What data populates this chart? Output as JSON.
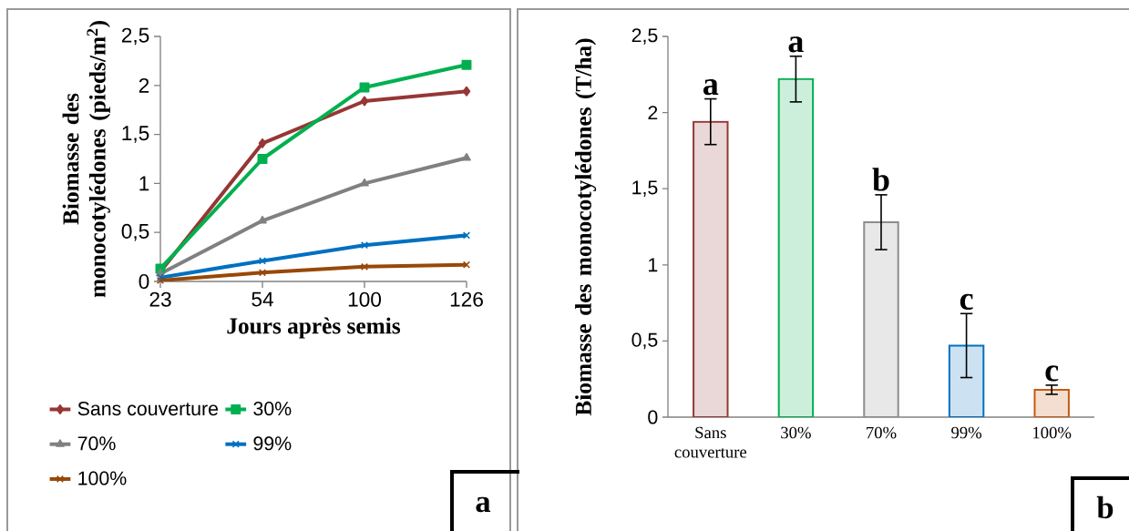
{
  "chart_data": [
    {
      "type": "line",
      "xlabel": "Jours après semis",
      "ylabel": "Biomasse des monocotylédones (pieds/m$^{2}$)",
      "categories": [
        "23",
        "54",
        "100",
        "126"
      ],
      "series": [
        {
          "name": "Sans couverture",
          "color": "#953735",
          "marker": "diamond",
          "values": [
            0.1,
            1.41,
            1.84,
            1.94
          ]
        },
        {
          "name": "30%",
          "color": "#00b050",
          "marker": "square",
          "values": [
            0.13,
            1.25,
            1.98,
            2.21
          ]
        },
        {
          "name": "70%",
          "color": "#808080",
          "marker": "triangle",
          "values": [
            0.08,
            0.62,
            1.0,
            1.26
          ]
        },
        {
          "name": "99%",
          "color": "#0070c0",
          "marker": "cross",
          "values": [
            0.04,
            0.21,
            0.37,
            0.47
          ]
        },
        {
          "name": "100%",
          "color": "#984807",
          "marker": "cross",
          "values": [
            0.01,
            0.09,
            0.15,
            0.17
          ]
        }
      ],
      "ylim": [
        0,
        2.5
      ],
      "yticks": [
        0,
        {
          "value": 0.5,
          "label": "0,5"
        },
        1,
        {
          "value": 1.5,
          "label": "1,5"
        },
        2,
        {
          "value": 2.5,
          "label": "2,5"
        }
      ],
      "line_style": "solid",
      "legend": "bottom",
      "grid": false,
      "annotations": [
        "a"
      ]
    },
    {
      "type": "bar",
      "ylabel": "Biomasse des monocotylédones (T/ha)",
      "categories": [
        "Sans couverture",
        "30%",
        "70%",
        "99%",
        "100%"
      ],
      "values": [
        1.94,
        2.22,
        1.28,
        0.47,
        0.18
      ],
      "errors": [
        0.15,
        0.15,
        0.18,
        0.21,
        0.03
      ],
      "colors": [
        "#953735",
        "#00b050",
        "#8c8c8c",
        "#0070c0",
        "#c55a11"
      ],
      "ylim": [
        0,
        2.5
      ],
      "yticks": [
        0,
        {
          "value": 0.5,
          "label": "0,5"
        },
        1,
        {
          "value": 1.5,
          "label": "1,5"
        },
        2,
        {
          "value": 2.5,
          "label": "2,5"
        }
      ],
      "legend": false,
      "grid": false,
      "annotations": [
        "a",
        "a",
        "b",
        "c",
        "c",
        "b"
      ]
    }
  ]
}
